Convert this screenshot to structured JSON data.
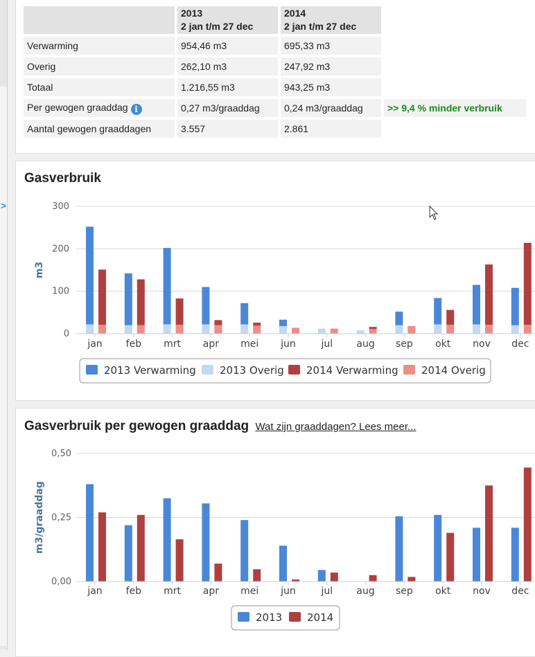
{
  "summary": {
    "header": {
      "col_2013_year": "2013",
      "col_2013_range": "2 jan t/m 27 dec",
      "col_2014_year": "2014",
      "col_2014_range": "2 jan t/m 27 dec"
    },
    "rows": [
      {
        "label": "Verwarming",
        "v2013": "954,46 m3",
        "v2014": "695,33 m3"
      },
      {
        "label": "Overig",
        "v2013": "262,10 m3",
        "v2014": "247,92 m3"
      },
      {
        "label": "Totaal",
        "v2013": "1.216,55 m3",
        "v2014": "943,25 m3"
      },
      {
        "label": "Per gewogen graaddag",
        "v2013": "0,27 m3/graaddag",
        "v2014": "0,24 m3/graaddag",
        "note": ">> 9,4 % minder verbruik"
      },
      {
        "label": "Aantal gewogen graaddagen",
        "v2013": "3.557",
        "v2014": "2.861"
      }
    ],
    "info_icon": "i"
  },
  "chart_data": [
    {
      "type": "bar",
      "stacked": true,
      "title": "Gasverbruik",
      "ylabel": "m3",
      "xlabel": "",
      "ylim": [
        0,
        300
      ],
      "yticks": [
        0,
        100,
        200,
        300
      ],
      "ytick_labels": [
        "0",
        "100",
        "200",
        "300"
      ],
      "categories": [
        "jan",
        "feb",
        "mrt",
        "apr",
        "mei",
        "jun",
        "jul",
        "aug",
        "sep",
        "okt",
        "nov",
        "dec"
      ],
      "series": [
        {
          "name": "2013 Verwarming",
          "stack": "2013",
          "color": "#4a87d6",
          "values": [
            230,
            122,
            180,
            88,
            50,
            15,
            0,
            0,
            32,
            62,
            93,
            88
          ]
        },
        {
          "name": "2013 Overig",
          "stack": "2013",
          "color": "#c3d9f1",
          "values": [
            22,
            20,
            22,
            22,
            22,
            18,
            12,
            8,
            20,
            22,
            22,
            20
          ]
        },
        {
          "name": "2014 Verwarming",
          "stack": "2014",
          "color": "#b04040",
          "values": [
            130,
            108,
            62,
            12,
            7,
            0,
            0,
            5,
            0,
            35,
            142,
            193
          ]
        },
        {
          "name": "2014 Overig",
          "stack": "2014",
          "color": "#ee8d86",
          "values": [
            21,
            20,
            21,
            20,
            19,
            14,
            12,
            11,
            18,
            21,
            21,
            21
          ]
        }
      ],
      "legend_order": [
        "2013 Verwarming",
        "2013 Overig",
        "2014 Verwarming",
        "2014 Overig"
      ]
    },
    {
      "type": "bar",
      "stacked": false,
      "title": "Gasverbruik per gewogen graaddag",
      "link_text": "Wat zijn graaddagen? Lees meer...",
      "ylabel": "m3/graaddag",
      "xlabel": "",
      "ylim": [
        0,
        0.5
      ],
      "yticks": [
        0,
        0.25,
        0.5
      ],
      "ytick_labels": [
        "0,00",
        "0,25",
        "0,50"
      ],
      "categories": [
        "jan",
        "feb",
        "mrt",
        "apr",
        "mei",
        "jun",
        "jul",
        "aug",
        "sep",
        "okt",
        "nov",
        "dec"
      ],
      "series": [
        {
          "name": "2013",
          "color": "#4a87d6",
          "values": [
            0.38,
            0.22,
            0.325,
            0.305,
            0.24,
            0.14,
            0.045,
            0,
            0.255,
            0.26,
            0.21,
            0.21
          ]
        },
        {
          "name": "2014",
          "color": "#b04040",
          "values": [
            0.27,
            0.26,
            0.165,
            0.07,
            0.048,
            0.008,
            0.035,
            0.025,
            0.018,
            0.19,
            0.375,
            0.445
          ]
        }
      ]
    }
  ]
}
